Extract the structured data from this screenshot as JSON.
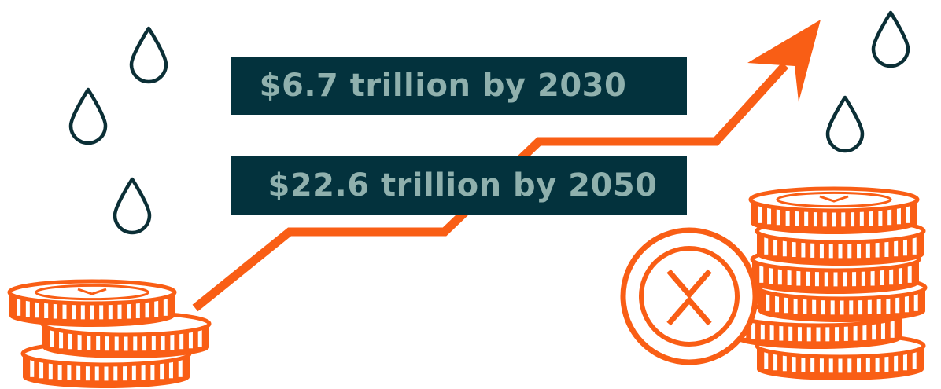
{
  "labels": {
    "first": "$6.7 trillion by 2030",
    "second": "$22.6 trillion by 2050"
  },
  "colors": {
    "accent": "#f95e15",
    "box": "#03323d",
    "box_text": "#8fb0ad",
    "drop_outline": "#0b2f36"
  },
  "icons": [
    "water-drop-icon",
    "coin-stack-icon",
    "big-coin-icon",
    "trend-arrow-icon"
  ]
}
